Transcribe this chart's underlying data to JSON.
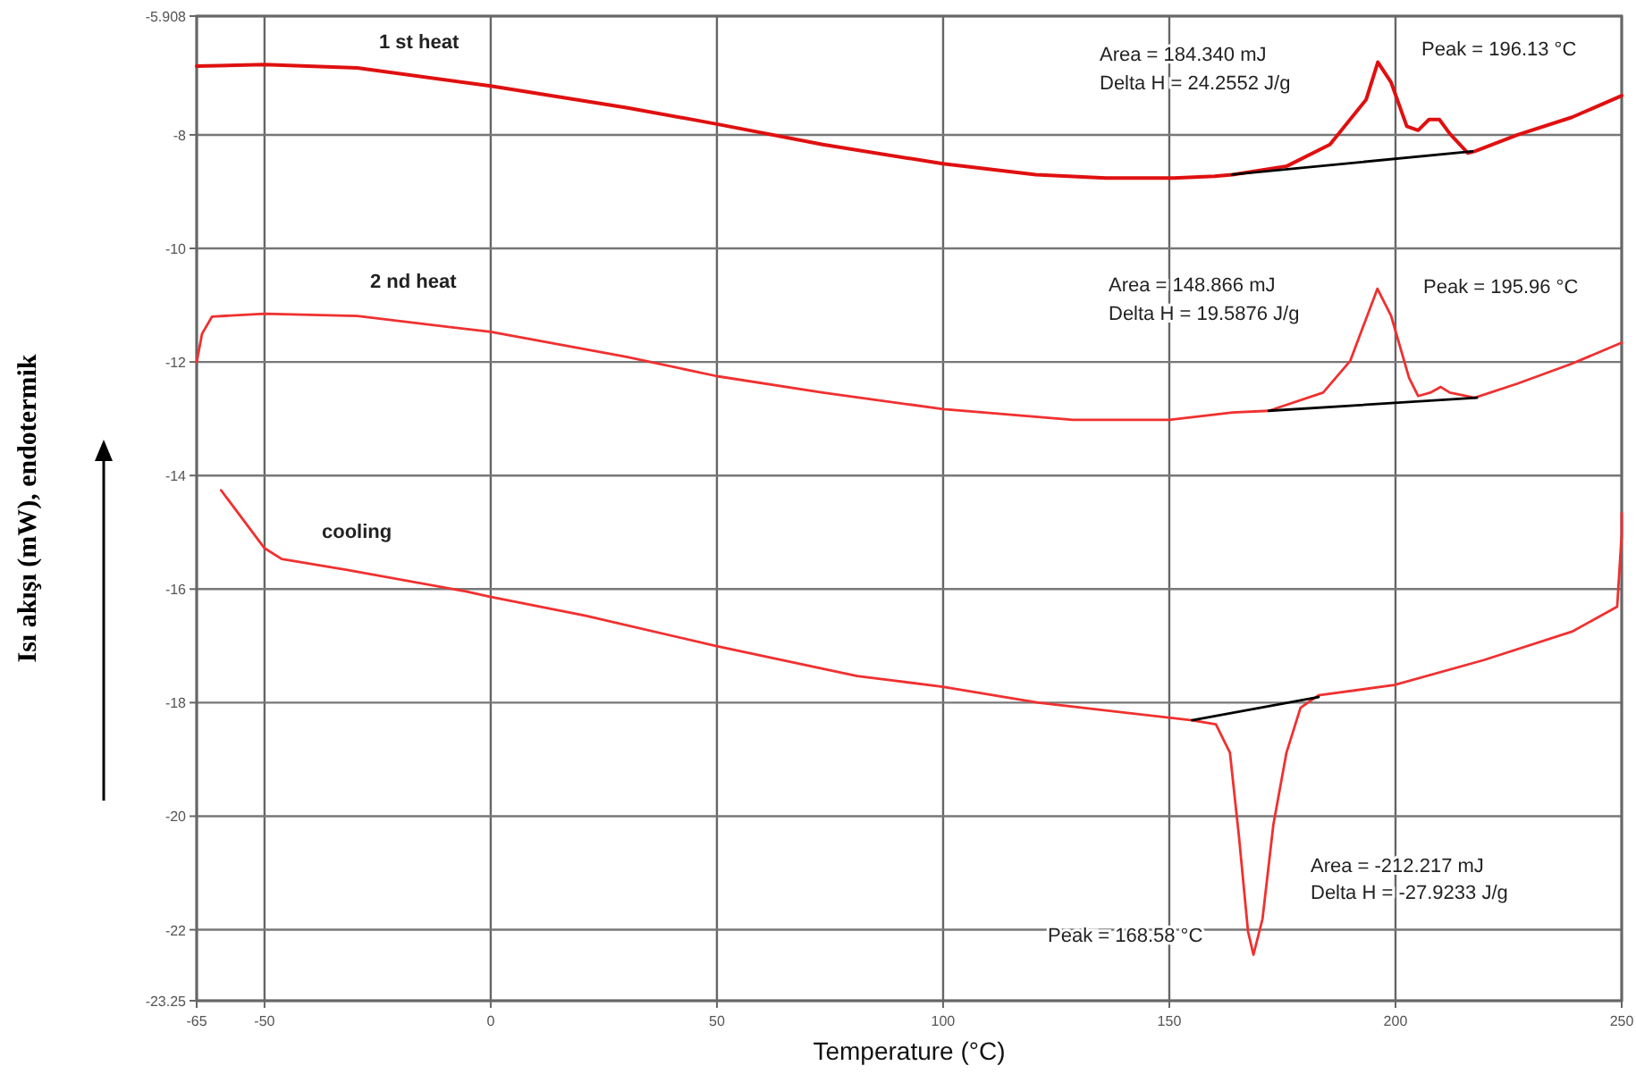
{
  "chart_data": {
    "type": "line",
    "xlabel": "Temperature (°C)",
    "ylabel": "Isı akışı (mW),  endotermik",
    "xlim": [
      -65,
      250
    ],
    "ylim": [
      -23.25,
      -5.908
    ],
    "xticks": [
      -65,
      -50,
      0,
      50,
      100,
      150,
      200,
      250
    ],
    "yticks": [
      -5.908,
      -8,
      -10,
      -12,
      -14,
      -16,
      -18,
      -20,
      -22,
      -23.25
    ],
    "grid": true,
    "marker": "none",
    "line_style": "solid",
    "series": [
      {
        "name": "1 st heat",
        "color": "#e01010",
        "x": [
          -65,
          -50,
          -29.5,
          0,
          30,
          50,
          73.4,
          100,
          120.5,
          136,
          151,
          160,
          164,
          176,
          185.5,
          193.5,
          196.1,
          199,
          202.5,
          205,
          207.4,
          209.7,
          212,
          216,
          217.5,
          227,
          239,
          250
        ],
        "values": [
          -6.79,
          -6.76,
          -6.82,
          -7.14,
          -7.52,
          -7.81,
          -8.17,
          -8.51,
          -8.7,
          -8.76,
          -8.76,
          -8.73,
          -8.7,
          -8.55,
          -8.17,
          -7.38,
          -6.72,
          -7.07,
          -7.85,
          -7.92,
          -7.73,
          -7.73,
          -7.98,
          -8.32,
          -8.29,
          -8,
          -7.69,
          -7.31
        ]
      },
      {
        "name": "2 nd heat",
        "color": "#f03030",
        "x": [
          -65,
          -63.8,
          -61.6,
          -50,
          -29.5,
          0,
          30,
          50,
          73.4,
          100,
          128.7,
          150,
          164,
          172,
          184,
          190,
          196,
          199,
          203,
          205,
          207.7,
          210,
          212,
          217.5,
          227,
          239,
          250
        ],
        "values": [
          -12,
          -11.5,
          -11.2,
          -11.15,
          -11.19,
          -11.47,
          -11.91,
          -12.25,
          -12.54,
          -12.83,
          -13.02,
          -13.02,
          -12.89,
          -12.86,
          -12.54,
          -11.98,
          -10.71,
          -11.18,
          -12.28,
          -12.6,
          -12.54,
          -12.44,
          -12.54,
          -12.63,
          -12.38,
          -12.03,
          -11.66
        ]
      },
      {
        "name": "cooling",
        "color": "#f03030",
        "x": [
          -59.6,
          -50,
          -46.2,
          -32,
          -5.5,
          -0.4,
          21,
          49.7,
          81,
          99.9,
          121,
          155,
          160.3,
          163.4,
          165.4,
          167.4,
          168.6,
          170.6,
          173,
          175.9,
          179,
          183,
          199.7,
          219.5,
          239,
          249,
          250,
          250
        ],
        "values": [
          -14.26,
          -15.28,
          -15.47,
          -15.66,
          -16.04,
          -16.13,
          -16.47,
          -17,
          -17.53,
          -17.72,
          -18,
          -18.31,
          -18.38,
          -18.88,
          -20.36,
          -22.03,
          -22.44,
          -21.81,
          -20.15,
          -18.88,
          -18.09,
          -17.87,
          -17.69,
          -17.25,
          -16.75,
          -16.31,
          -15.03,
          -14.66
        ]
      },
      {
        "color": "#000000",
        "x": [
          163.8,
          217
        ],
        "values": [
          -8.7,
          -8.29
        ]
      },
      {
        "color": "#000000",
        "x": [
          172,
          218
        ],
        "values": [
          -12.86,
          -12.63
        ]
      },
      {
        "color": "#000000",
        "x": [
          155,
          183
        ],
        "values": [
          -18.31,
          -17.9
        ]
      }
    ],
    "annotations": [
      "Area = 184.340 mJ",
      "Delta H = 24.2552 J/g",
      "Peak = 196.13 °C",
      "Area = 148.866 mJ",
      "Delta H = 19.5876 J/g",
      "Peak = 195.96 °C",
      "Area = -212.217 mJ",
      "Delta H = -27.9233 J/g",
      "Peak = 168.58 °C"
    ]
  }
}
